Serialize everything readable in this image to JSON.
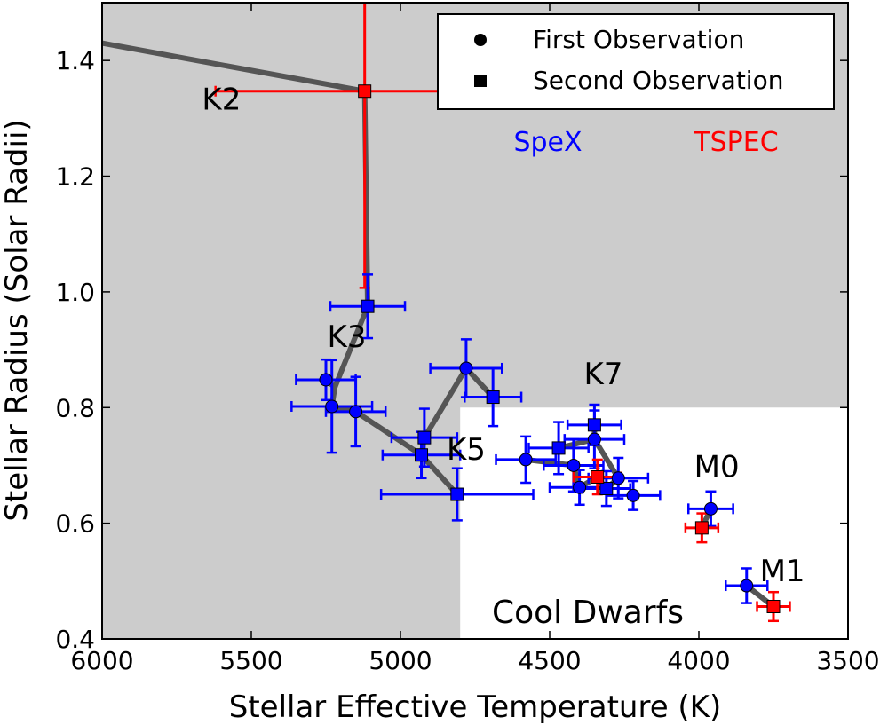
{
  "chart_data": {
    "type": "scatter",
    "title": "",
    "xlabel": "Stellar Effective Temperature (K)",
    "ylabel": "Stellar Radius (Solar Radii)",
    "xlim": [
      6000,
      3500
    ],
    "ylim": [
      0.4,
      1.5
    ],
    "xticks": [
      6000,
      5500,
      5000,
      4500,
      4000,
      3500
    ],
    "yticks": [
      0.4,
      0.6,
      0.8,
      1.0,
      1.2,
      1.4
    ],
    "xtick_labels": [
      "6000",
      "5500",
      "5000",
      "4500",
      "4000",
      "3500"
    ],
    "ytick_labels": [
      "0.4",
      "0.6",
      "0.8",
      "1.0",
      "1.2",
      "1.4"
    ],
    "grid": false,
    "legend": {
      "location": "top-right",
      "entries": [
        {
          "marker": "circle",
          "label": "First Observation"
        },
        {
          "marker": "square",
          "label": "Second Observation"
        }
      ]
    },
    "instrument_labels": [
      {
        "label": "SpeX",
        "color": "#0000ff"
      },
      {
        "label": "TSPEC",
        "color": "#ff0000"
      }
    ],
    "regions": [
      {
        "name": "hot-stars",
        "color": "#cccccc",
        "t_min": 4800,
        "r_min": 0.4,
        "r_cut": 0.8
      },
      {
        "name": "Cool Dwarfs",
        "label": "Cool Dwarfs",
        "t_max": 4800,
        "r_max": 0.8
      }
    ],
    "spectral_types": [
      {
        "label": "K2",
        "t": 5600,
        "r": 1.315
      },
      {
        "label": "K3",
        "t": 5180,
        "r": 0.905
      },
      {
        "label": "K5",
        "t": 4780,
        "r": 0.71
      },
      {
        "label": "K7",
        "t": 4320,
        "r": 0.84
      },
      {
        "label": "M0",
        "t": 3940,
        "r": 0.68
      },
      {
        "label": "M1",
        "t": 3720,
        "r": 0.5
      }
    ],
    "connectors": [
      {
        "from": [
          6000,
          1.43
        ],
        "to": [
          5120,
          1.347
        ]
      },
      {
        "from": [
          5120,
          1.347
        ],
        "to": [
          5110,
          0.975
        ]
      },
      {
        "from": [
          5110,
          0.975
        ],
        "to": [
          5220,
          0.835
        ]
      },
      {
        "from": [
          5250,
          0.848
        ],
        "to": [
          5220,
          0.835
        ]
      },
      {
        "from": [
          5220,
          0.835
        ],
        "to": [
          5230,
          0.802
        ]
      },
      {
        "from": [
          5230,
          0.802
        ],
        "to": [
          5150,
          0.793
        ]
      },
      {
        "from": [
          5150,
          0.793
        ],
        "to": [
          4930,
          0.718
        ]
      },
      {
        "from": [
          4930,
          0.718
        ],
        "to": [
          4810,
          0.65
        ]
      },
      {
        "from": [
          4930,
          0.718
        ],
        "to": [
          4920,
          0.748
        ]
      },
      {
        "from": [
          4920,
          0.748
        ],
        "to": [
          4780,
          0.868
        ]
      },
      {
        "from": [
          4780,
          0.868
        ],
        "to": [
          4690,
          0.818
        ]
      },
      {
        "from": [
          4580,
          0.71
        ],
        "to": [
          4420,
          0.7
        ]
      },
      {
        "from": [
          4420,
          0.7
        ],
        "to": [
          4400,
          0.662
        ]
      },
      {
        "from": [
          4400,
          0.662
        ],
        "to": [
          4340,
          0.68
        ]
      },
      {
        "from": [
          4340,
          0.68
        ],
        "to": [
          4310,
          0.66
        ]
      },
      {
        "from": [
          4310,
          0.66
        ],
        "to": [
          4270,
          0.678
        ]
      },
      {
        "from": [
          4270,
          0.678
        ],
        "to": [
          4350,
          0.745
        ]
      },
      {
        "from": [
          4350,
          0.745
        ],
        "to": [
          4470,
          0.73
        ]
      },
      {
        "from": [
          4350,
          0.745
        ],
        "to": [
          4350,
          0.77
        ]
      },
      {
        "from": [
          3960,
          0.625
        ],
        "to": [
          3990,
          0.592
        ]
      },
      {
        "from": [
          3840,
          0.492
        ],
        "to": [
          3750,
          0.456
        ]
      }
    ],
    "series": [
      {
        "name": "First Observation",
        "marker": "circle",
        "points": [
          {
            "t": 5250,
            "r": 0.848,
            "t_err": 100,
            "r_err": 0.035,
            "instrument": "SpeX"
          },
          {
            "t": 5230,
            "r": 0.802,
            "t_err": 135,
            "r_err": 0.08,
            "instrument": "SpeX"
          },
          {
            "t": 5150,
            "r": 0.793,
            "t_err": 100,
            "r_err": 0.06,
            "instrument": "SpeX"
          },
          {
            "t": 4780,
            "r": 0.868,
            "t_err": 120,
            "r_err": 0.05,
            "instrument": "SpeX"
          },
          {
            "t": 4580,
            "r": 0.71,
            "t_err": 100,
            "r_err": 0.04,
            "instrument": "SpeX"
          },
          {
            "t": 4420,
            "r": 0.7,
            "t_err": 100,
            "r_err": 0.045,
            "instrument": "SpeX"
          },
          {
            "t": 4400,
            "r": 0.662,
            "t_err": 100,
            "r_err": 0.03,
            "instrument": "SpeX"
          },
          {
            "t": 4350,
            "r": 0.745,
            "t_err": 100,
            "r_err": 0.05,
            "instrument": "SpeX"
          },
          {
            "t": 4270,
            "r": 0.678,
            "t_err": 100,
            "r_err": 0.035,
            "instrument": "SpeX"
          },
          {
            "t": 4220,
            "r": 0.648,
            "t_err": 90,
            "r_err": 0.025,
            "instrument": "SpeX"
          },
          {
            "t": 3960,
            "r": 0.625,
            "t_err": 75,
            "r_err": 0.03,
            "instrument": "SpeX"
          },
          {
            "t": 3840,
            "r": 0.492,
            "t_err": 70,
            "r_err": 0.03,
            "instrument": "SpeX"
          }
        ]
      },
      {
        "name": "Second Observation",
        "marker": "square",
        "points": [
          {
            "t": 5120,
            "r": 1.347,
            "t_err": 500,
            "r_err": 0.34,
            "instrument": "TSPEC"
          },
          {
            "t": 5110,
            "r": 0.975,
            "t_err": 125,
            "r_err": 0.055,
            "instrument": "SpeX"
          },
          {
            "t": 4920,
            "r": 0.748,
            "t_err": 110,
            "r_err": 0.05,
            "instrument": "SpeX"
          },
          {
            "t": 4930,
            "r": 0.718,
            "t_err": 130,
            "r_err": 0.04,
            "instrument": "SpeX"
          },
          {
            "t": 4810,
            "r": 0.65,
            "t_err": 255,
            "r_err": 0.045,
            "instrument": "SpeX"
          },
          {
            "t": 4690,
            "r": 0.818,
            "t_err": 95,
            "r_err": 0.05,
            "instrument": "SpeX"
          },
          {
            "t": 4470,
            "r": 0.73,
            "t_err": 100,
            "r_err": 0.045,
            "instrument": "SpeX"
          },
          {
            "t": 4350,
            "r": 0.77,
            "t_err": 90,
            "r_err": 0.035,
            "instrument": "SpeX"
          },
          {
            "t": 4310,
            "r": 0.66,
            "t_err": 80,
            "r_err": 0.03,
            "instrument": "SpeX"
          },
          {
            "t": 4340,
            "r": 0.68,
            "t_err": 80,
            "r_err": 0.03,
            "instrument": "TSPEC"
          },
          {
            "t": 3990,
            "r": 0.592,
            "t_err": 55,
            "r_err": 0.025,
            "instrument": "TSPEC"
          },
          {
            "t": 3750,
            "r": 0.456,
            "t_err": 55,
            "r_err": 0.025,
            "instrument": "TSPEC"
          }
        ]
      }
    ]
  }
}
